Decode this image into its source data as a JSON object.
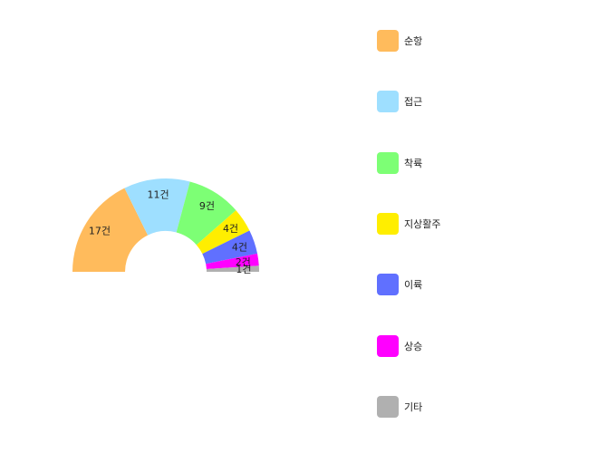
{
  "chart_data": {
    "type": "pie",
    "variant": "half-doughnut",
    "label_suffix": "건",
    "legend_position": "right",
    "slices": [
      {
        "name": "순항",
        "value": 17,
        "label": "17건",
        "color": "#FFBB5C"
      },
      {
        "name": "접근",
        "value": 11,
        "label": "11건",
        "color": "#9EDFFF"
      },
      {
        "name": "착륙",
        "value": 9,
        "label": "9건",
        "color": "#7DFF75"
      },
      {
        "name": "지상활주",
        "value": 4,
        "label": "4건",
        "color": "#FFEE00"
      },
      {
        "name": "이륙",
        "value": 4,
        "label": "4건",
        "color": "#6070FF"
      },
      {
        "name": "상승",
        "value": 2,
        "label": "2건",
        "color": "#FF00FF"
      },
      {
        "name": "기타",
        "value": 1,
        "label": "1건",
        "color": "#B0B0B0"
      }
    ]
  }
}
